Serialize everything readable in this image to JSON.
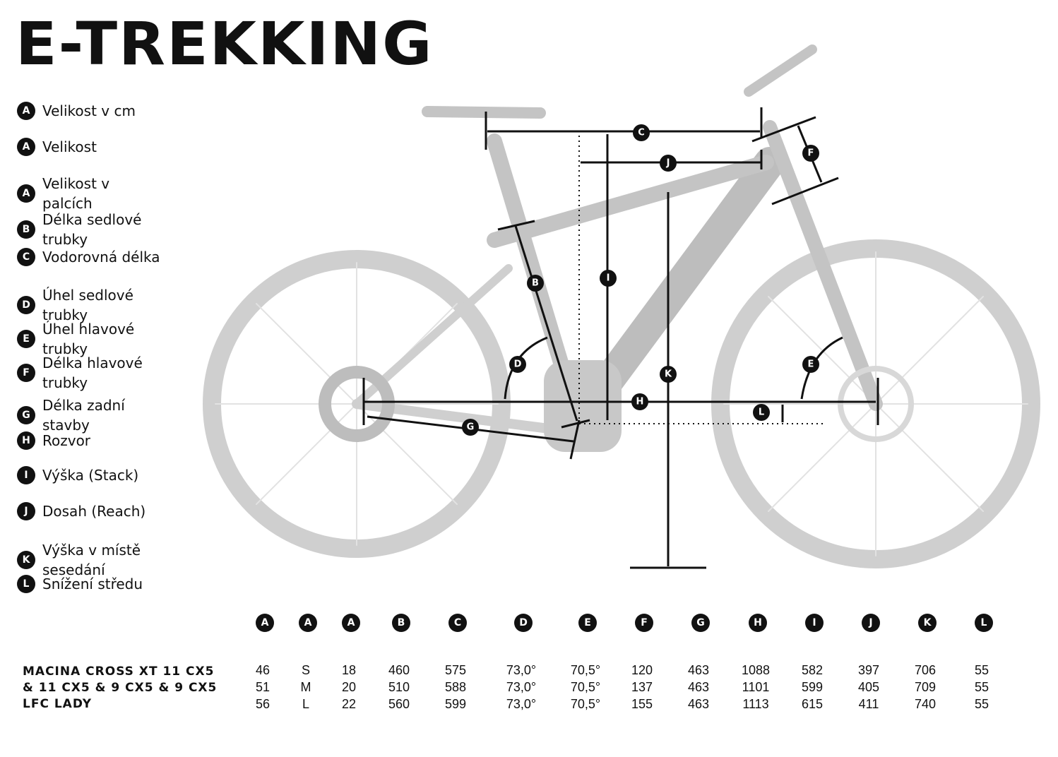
{
  "title": "E-TREKKING",
  "legend": [
    {
      "letter": "A",
      "label": "Velikost v cm"
    },
    {
      "letter": "A",
      "label": "Velikost"
    },
    {
      "letter": "A",
      "label": "Velikost v palcích"
    },
    {
      "letter": "B",
      "label": "Délka sedlové trubky"
    },
    {
      "letter": "C",
      "label": "Vodorovná délka"
    },
    {
      "letter": "D",
      "label": "Úhel sedlové trubky"
    },
    {
      "letter": "E",
      "label": "Úhel hlavové trubky"
    },
    {
      "letter": "F",
      "label": "Délka hlavové trubky"
    },
    {
      "letter": "G",
      "label": "Délka zadní stavby"
    },
    {
      "letter": "H",
      "label": "Rozvor"
    },
    {
      "letter": "I",
      "label": "Výška (Stack)"
    },
    {
      "letter": "J",
      "label": "Dosah (Reach)"
    },
    {
      "letter": "K",
      "label": "Výška v místě sesedání"
    },
    {
      "letter": "L",
      "label": "Snížení středu"
    }
  ],
  "table": {
    "headers": [
      "A",
      "A",
      "A",
      "B",
      "C",
      "D",
      "E",
      "F",
      "G",
      "H",
      "I",
      "J",
      "K",
      "L"
    ],
    "model": "MACINA CROSS XT 11 CX5 & 11 CX5 & 9 CX5 & 9 CX5 LFC LADY",
    "rows": [
      [
        "46",
        "S",
        "18",
        "460",
        "575",
        "73,0°",
        "70,5°",
        "120",
        "463",
        "1088",
        "582",
        "397",
        "706",
        "55"
      ],
      [
        "51",
        "M",
        "20",
        "510",
        "588",
        "73,0°",
        "70,5°",
        "137",
        "463",
        "1101",
        "599",
        "405",
        "709",
        "55"
      ],
      [
        "56",
        "L",
        "22",
        "560",
        "599",
        "73,0°",
        "70,5°",
        "155",
        "463",
        "1113",
        "615",
        "411",
        "740",
        "55"
      ]
    ]
  },
  "colors": {
    "bike": "#c8c8c8",
    "ink": "#111111"
  }
}
